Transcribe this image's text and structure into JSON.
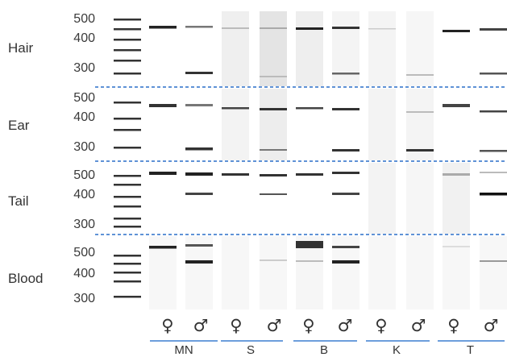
{
  "tissues": [
    {
      "name": "Hair"
    },
    {
      "name": "Ear"
    },
    {
      "name": "Tail"
    },
    {
      "name": "Blood"
    }
  ],
  "size_markers": {
    "hair": [
      "500",
      "400",
      "300"
    ],
    "ear": [
      "500",
      "400",
      "300"
    ],
    "tail": [
      "500",
      "400",
      "300"
    ],
    "blood": [
      "500",
      "400",
      "300"
    ]
  },
  "sexes": [
    "♀",
    "♂",
    "♀",
    "♂",
    "♀",
    "♂",
    "♀",
    "♂",
    "♀",
    "♂"
  ],
  "groups": [
    "MN",
    "S",
    "B",
    "K",
    "T"
  ],
  "colors": {
    "separator": "#2a6fc9",
    "group_line": "#3b7fd0",
    "band": "#111111"
  }
}
